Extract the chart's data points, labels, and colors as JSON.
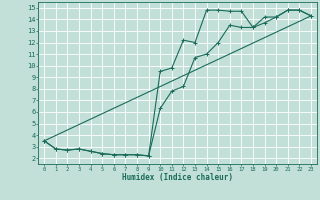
{
  "xlabel": "Humidex (Indice chaleur)",
  "ylabel": "",
  "bg_color": "#c2e0d8",
  "grid_color": "#ffffff",
  "line_color": "#1a6b5a",
  "xlim": [
    -0.5,
    23.5
  ],
  "ylim": [
    1.5,
    15.5
  ],
  "xticks": [
    0,
    1,
    2,
    3,
    4,
    5,
    6,
    7,
    8,
    9,
    10,
    11,
    12,
    13,
    14,
    15,
    16,
    17,
    18,
    19,
    20,
    21,
    22,
    23
  ],
  "yticks": [
    2,
    3,
    4,
    5,
    6,
    7,
    8,
    9,
    10,
    11,
    12,
    13,
    14,
    15
  ],
  "line1_x": [
    0,
    1,
    2,
    3,
    4,
    5,
    6,
    7,
    8,
    9,
    10,
    11,
    12,
    13,
    14,
    15,
    16,
    17,
    18,
    19,
    20,
    21,
    22,
    23
  ],
  "line1_y": [
    3.5,
    2.8,
    2.7,
    2.8,
    2.6,
    2.4,
    2.3,
    2.3,
    2.3,
    2.2,
    9.5,
    9.8,
    12.2,
    12.0,
    14.8,
    14.8,
    14.7,
    14.7,
    13.3,
    14.2,
    14.2,
    14.8,
    14.8,
    14.3
  ],
  "line2_x": [
    0,
    1,
    2,
    3,
    4,
    5,
    6,
    7,
    8,
    9,
    10,
    11,
    12,
    13,
    14,
    15,
    16,
    17,
    18,
    19,
    20,
    21,
    22,
    23
  ],
  "line2_y": [
    3.5,
    2.8,
    2.7,
    2.8,
    2.6,
    2.4,
    2.3,
    2.3,
    2.3,
    2.2,
    6.3,
    7.8,
    8.2,
    10.7,
    11.0,
    12.0,
    13.5,
    13.3,
    13.3,
    13.7,
    14.2,
    14.8,
    14.8,
    14.3
  ],
  "line3_x": [
    0,
    23
  ],
  "line3_y": [
    3.5,
    14.3
  ],
  "xlabel_fontsize": 5.5,
  "ylabel_fontsize": 5.5,
  "xtick_fontsize": 4.0,
  "ytick_fontsize": 5.0
}
